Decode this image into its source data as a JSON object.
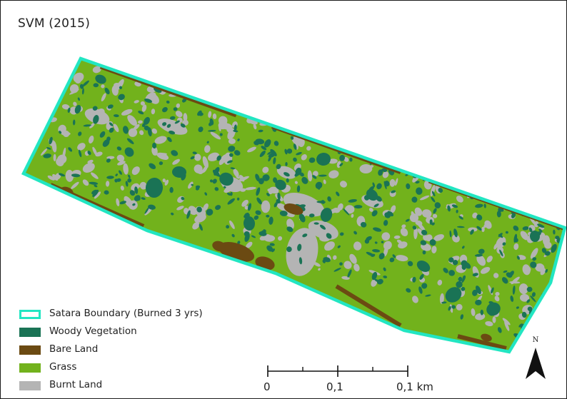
{
  "map": {
    "title": "SVM (2015)"
  },
  "colors": {
    "boundary": "#22e6c2",
    "woody_vegetation": "#1a7355",
    "bare_land": "#6b4a12",
    "grass": "#72b21c",
    "burnt_land": "#b4b4b4"
  },
  "legend": {
    "items": [
      {
        "label": "Satara Boundary (Burned 3 yrs)",
        "swatch": "outline"
      },
      {
        "label": "Woody Vegetation",
        "swatch": "woody_vegetation"
      },
      {
        "label": "Bare Land",
        "swatch": "bare_land"
      },
      {
        "label": "Grass",
        "swatch": "grass"
      },
      {
        "label": "Burnt Land",
        "swatch": "burnt_land"
      }
    ]
  },
  "scalebar": {
    "labels": [
      "0",
      "0,1",
      "0,1 km"
    ]
  },
  "north_arrow": {
    "label": "N",
    "icon": "north-arrow-icon"
  }
}
